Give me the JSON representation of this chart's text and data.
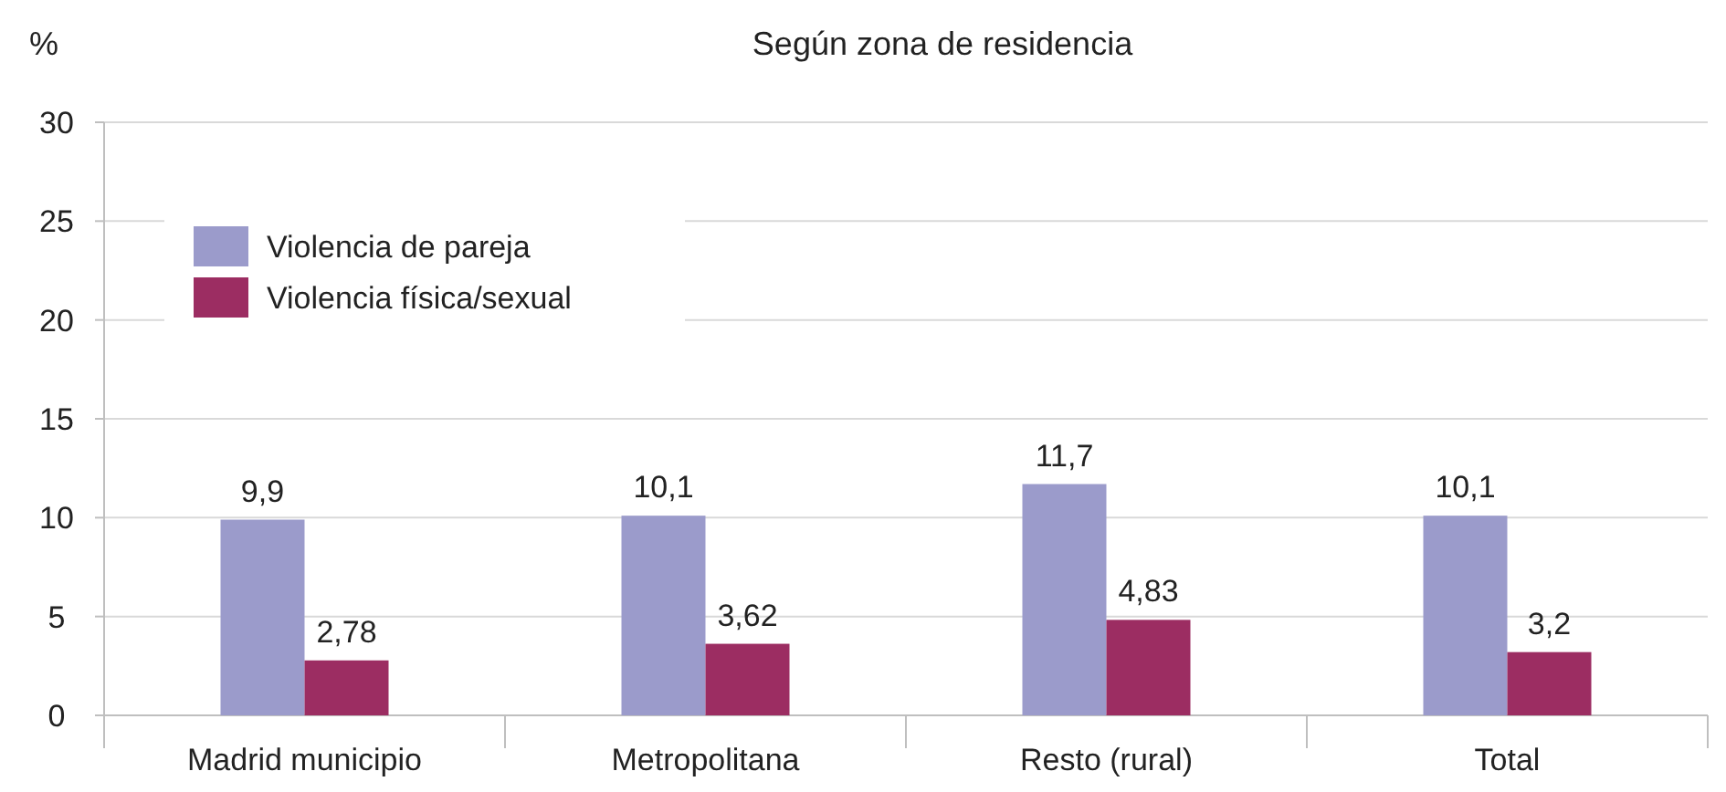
{
  "chart_data": {
    "type": "bar",
    "title": "Según zona de residencia",
    "ylabel": "%",
    "categories": [
      "Madrid municipio",
      "Metropolitana",
      "Resto (rural)",
      "Total"
    ],
    "series": [
      {
        "name": "Violencia de pareja",
        "color": "#9b9bcb",
        "values": [
          9.9,
          10.1,
          11.7,
          10.1
        ],
        "value_labels": [
          "9,9",
          "10,1",
          "11,7",
          "10,1"
        ]
      },
      {
        "name": "Violencia física/sexual",
        "color": "#9c2d62",
        "values": [
          2.78,
          3.62,
          4.83,
          3.2
        ],
        "value_labels": [
          "2,78",
          "3,62",
          "4,83",
          "3,2"
        ]
      }
    ],
    "ylim": [
      0,
      30
    ],
    "yticks": [
      0,
      5,
      10,
      15,
      20,
      25,
      30
    ],
    "grid": "y",
    "legend": "top left"
  }
}
